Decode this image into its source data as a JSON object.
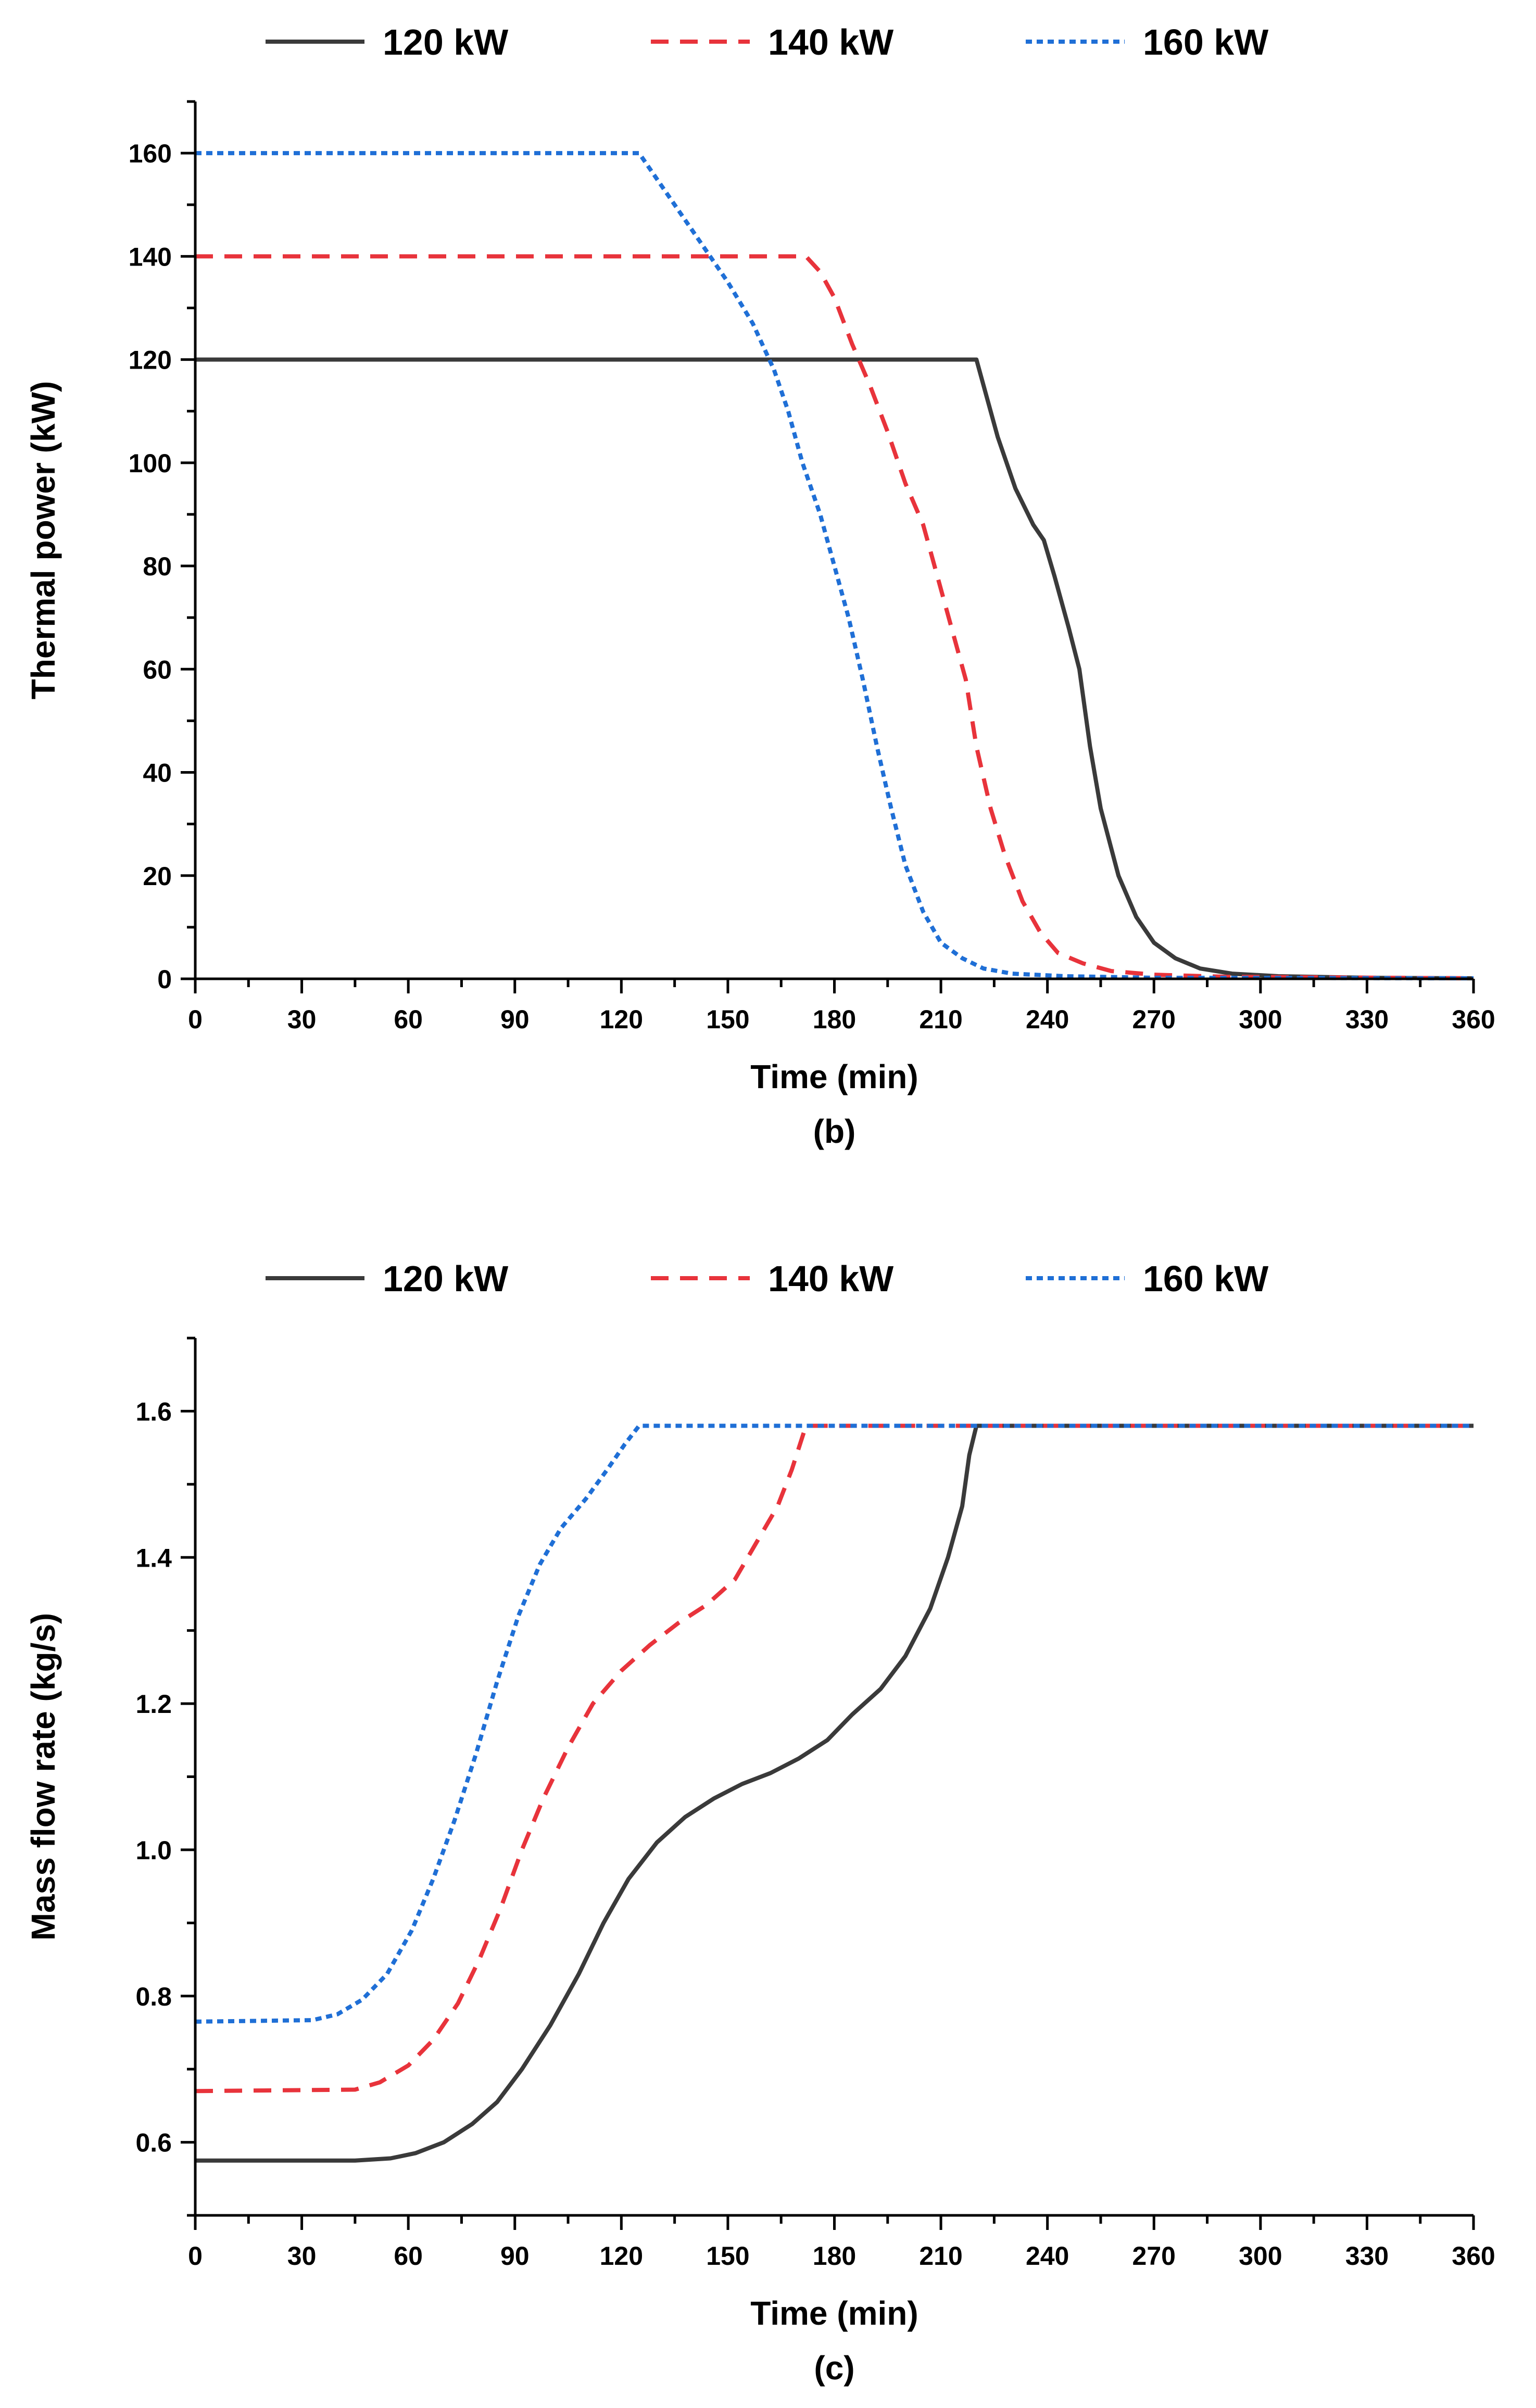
{
  "colors": {
    "120 kW": "#3a3a3a",
    "140 kW": "#e8333b",
    "160 kW": "#1f6fd6"
  },
  "chart_data": [
    {
      "type": "line",
      "panel_label": "(b)",
      "xlabel": "Time (min)",
      "ylabel": "Thermal power (kW)",
      "xlim": [
        0,
        360
      ],
      "ylim": [
        0,
        170
      ],
      "xticks": [
        0,
        30,
        60,
        90,
        120,
        150,
        180,
        210,
        240,
        270,
        300,
        330,
        360
      ],
      "yticks": [
        0,
        20,
        40,
        60,
        80,
        100,
        120,
        140,
        160
      ],
      "grid": false,
      "legend": "top",
      "series": [
        {
          "name": "120 kW",
          "style": "solid",
          "points": [
            [
              0,
              120
            ],
            [
              220,
              120
            ],
            [
              222,
              115
            ],
            [
              226,
              105
            ],
            [
              231,
              95
            ],
            [
              236,
              88
            ],
            [
              239,
              85
            ],
            [
              242,
              78
            ],
            [
              246,
              68
            ],
            [
              249,
              60
            ],
            [
              252,
              45
            ],
            [
              255,
              33
            ],
            [
              260,
              20
            ],
            [
              265,
              12
            ],
            [
              270,
              7
            ],
            [
              276,
              4
            ],
            [
              283,
              2
            ],
            [
              292,
              1
            ],
            [
              305,
              0.5
            ],
            [
              330,
              0.2
            ],
            [
              360,
              0.1
            ]
          ]
        },
        {
          "name": "140 kW",
          "style": "dashed",
          "points": [
            [
              0,
              140
            ],
            [
              172,
              140
            ],
            [
              176,
              137
            ],
            [
              180,
              132
            ],
            [
              185,
              123
            ],
            [
              190,
              115
            ],
            [
              195,
              106
            ],
            [
              200,
              96
            ],
            [
              205,
              88
            ],
            [
              209,
              78
            ],
            [
              213,
              68
            ],
            [
              217,
              58
            ],
            [
              220,
              45
            ],
            [
              224,
              33
            ],
            [
              228,
              24
            ],
            [
              233,
              15
            ],
            [
              238,
              9
            ],
            [
              243,
              5
            ],
            [
              250,
              3
            ],
            [
              258,
              1.5
            ],
            [
              270,
              0.8
            ],
            [
              290,
              0.4
            ],
            [
              360,
              0.1
            ]
          ]
        },
        {
          "name": "160 kW",
          "style": "dotted",
          "points": [
            [
              0,
              160
            ],
            [
              125,
              160
            ],
            [
              128,
              157
            ],
            [
              135,
              150
            ],
            [
              142,
              143
            ],
            [
              150,
              135
            ],
            [
              157,
              127
            ],
            [
              163,
              118
            ],
            [
              167,
              110
            ],
            [
              171,
              100
            ],
            [
              176,
              90
            ],
            [
              180,
              80
            ],
            [
              184,
              70
            ],
            [
              188,
              58
            ],
            [
              192,
              45
            ],
            [
              196,
              33
            ],
            [
              200,
              22
            ],
            [
              205,
              13
            ],
            [
              210,
              7
            ],
            [
              216,
              4
            ],
            [
              222,
              2
            ],
            [
              230,
              1
            ],
            [
              245,
              0.5
            ],
            [
              270,
              0.2
            ],
            [
              360,
              0.1
            ]
          ]
        }
      ]
    },
    {
      "type": "line",
      "panel_label": "(c)",
      "xlabel": "Time (min)",
      "ylabel": "Mass flow rate (kg/s)",
      "xlim": [
        0,
        360
      ],
      "ylim": [
        0.5,
        1.7
      ],
      "xticks": [
        0,
        30,
        60,
        90,
        120,
        150,
        180,
        210,
        240,
        270,
        300,
        330,
        360
      ],
      "yticks": [
        0.6,
        0.8,
        1.0,
        1.2,
        1.4,
        1.6
      ],
      "grid": false,
      "legend": "top",
      "series": [
        {
          "name": "120 kW",
          "style": "solid",
          "points": [
            [
              0,
              0.575
            ],
            [
              45,
              0.575
            ],
            [
              55,
              0.578
            ],
            [
              62,
              0.585
            ],
            [
              70,
              0.6
            ],
            [
              78,
              0.625
            ],
            [
              85,
              0.655
            ],
            [
              92,
              0.7
            ],
            [
              100,
              0.76
            ],
            [
              108,
              0.83
            ],
            [
              115,
              0.9
            ],
            [
              122,
              0.96
            ],
            [
              130,
              1.01
            ],
            [
              138,
              1.045
            ],
            [
              146,
              1.07
            ],
            [
              154,
              1.09
            ],
            [
              162,
              1.105
            ],
            [
              170,
              1.125
            ],
            [
              178,
              1.15
            ],
            [
              185,
              1.185
            ],
            [
              193,
              1.22
            ],
            [
              200,
              1.265
            ],
            [
              207,
              1.33
            ],
            [
              212,
              1.4
            ],
            [
              216,
              1.47
            ],
            [
              218,
              1.54
            ],
            [
              220,
              1.58
            ],
            [
              360,
              1.58
            ]
          ]
        },
        {
          "name": "140 kW",
          "style": "dashed",
          "points": [
            [
              0,
              0.67
            ],
            [
              45,
              0.672
            ],
            [
              52,
              0.682
            ],
            [
              60,
              0.705
            ],
            [
              67,
              0.74
            ],
            [
              74,
              0.79
            ],
            [
              80,
              0.85
            ],
            [
              86,
              0.92
            ],
            [
              92,
              1.0
            ],
            [
              98,
              1.07
            ],
            [
              105,
              1.14
            ],
            [
              112,
              1.2
            ],
            [
              120,
              1.245
            ],
            [
              128,
              1.28
            ],
            [
              136,
              1.31
            ],
            [
              144,
              1.335
            ],
            [
              152,
              1.37
            ],
            [
              158,
              1.42
            ],
            [
              164,
              1.47
            ],
            [
              168,
              1.52
            ],
            [
              172,
              1.58
            ],
            [
              360,
              1.58
            ]
          ]
        },
        {
          "name": "160 kW",
          "style": "dotted",
          "points": [
            [
              0,
              0.765
            ],
            [
              33,
              0.767
            ],
            [
              40,
              0.775
            ],
            [
              47,
              0.795
            ],
            [
              54,
              0.83
            ],
            [
              61,
              0.89
            ],
            [
              67,
              0.96
            ],
            [
              73,
              1.04
            ],
            [
              79,
              1.13
            ],
            [
              85,
              1.23
            ],
            [
              91,
              1.32
            ],
            [
              97,
              1.39
            ],
            [
              103,
              1.44
            ],
            [
              110,
              1.48
            ],
            [
              116,
              1.52
            ],
            [
              121,
              1.555
            ],
            [
              125,
              1.58
            ],
            [
              360,
              1.58
            ]
          ]
        }
      ]
    }
  ]
}
